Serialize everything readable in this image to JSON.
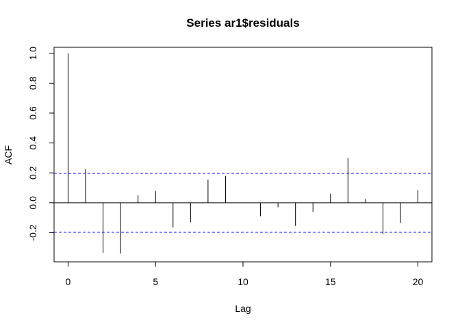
{
  "chart_data": {
    "type": "bar",
    "subtype": "acf",
    "title": "Series  ar1$residuals",
    "xlabel": "Lag",
    "ylabel": "ACF",
    "x": [
      0,
      1,
      2,
      3,
      4,
      5,
      6,
      7,
      8,
      9,
      10,
      11,
      12,
      13,
      14,
      15,
      16,
      17,
      18,
      19,
      20
    ],
    "values": [
      1.0,
      0.225,
      -0.335,
      -0.34,
      0.05,
      0.08,
      -0.165,
      -0.13,
      0.155,
      0.18,
      0.0,
      -0.09,
      -0.03,
      -0.155,
      -0.06,
      0.06,
      0.3,
      0.025,
      -0.21,
      -0.135,
      0.085
    ],
    "xlim": [
      -0.8,
      20.8
    ],
    "ylim": [
      -0.395,
      1.04
    ],
    "xticks": [
      0,
      5,
      10,
      15,
      20
    ],
    "yticks": [
      -0.2,
      0.0,
      0.2,
      0.4,
      0.6,
      0.8,
      1.0
    ],
    "ytick_labels": [
      "-0.2",
      "0.0",
      "0.2",
      "0.4",
      "0.6",
      "0.8",
      "1.0"
    ],
    "confidence_bound": 0.197,
    "confidence_color": "#0000ff",
    "spike_color": "#000000",
    "grid": false,
    "legend": "none"
  }
}
